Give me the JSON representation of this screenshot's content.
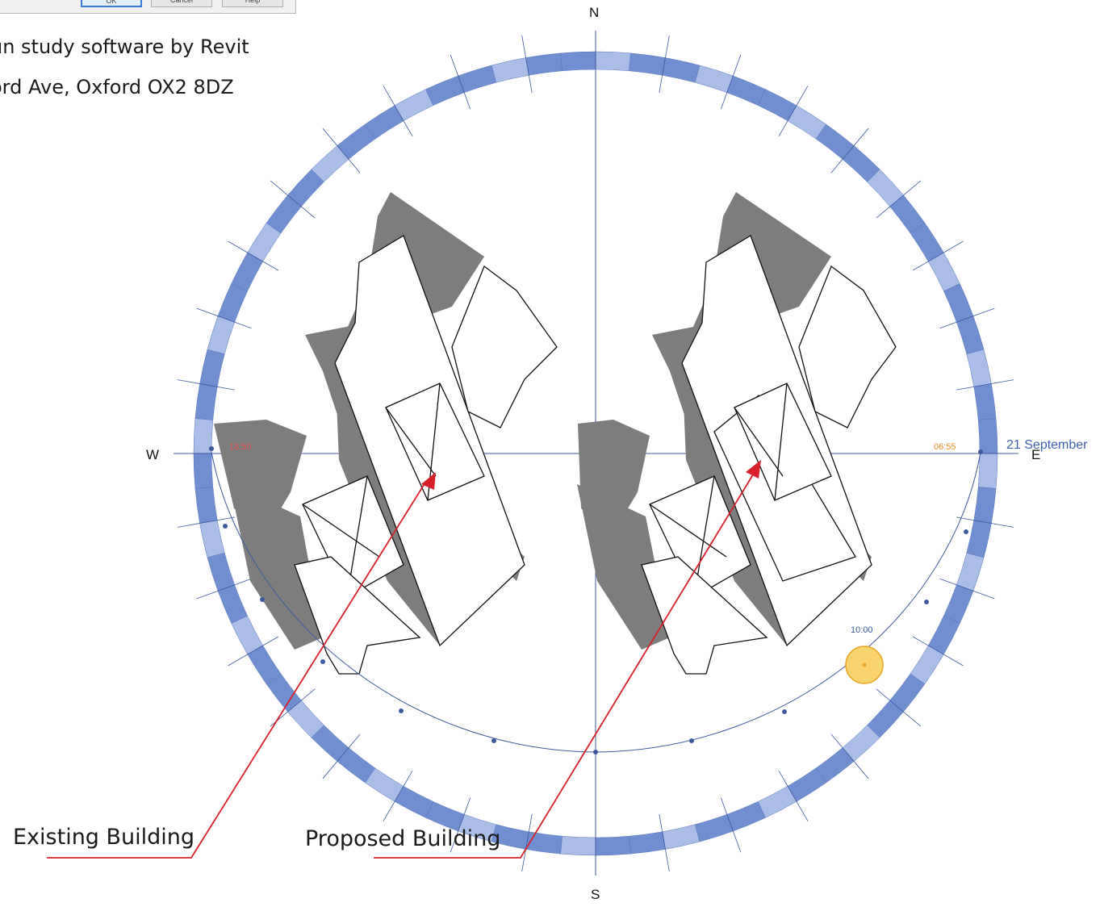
{
  "dialog": {
    "ok_label": "OK",
    "cancel_label": "Cancel",
    "help_label": "Help"
  },
  "caption": {
    "line1": "un study software by Revit",
    "line2": "ord Ave, Oxford OX2 8DZ"
  },
  "compass": {
    "north": "N",
    "south": "S",
    "east": "E",
    "west": "W"
  },
  "sun_path": {
    "date": "21 September",
    "sunrise_time": "06:55",
    "sunset_time": "18:50",
    "current_time": "10:00"
  },
  "callouts": {
    "existing": "Existing Building",
    "proposed": "Proposed Building"
  },
  "colors": {
    "ring_dark": "#6f8fd0",
    "ring_light": "#a9bde6",
    "axis": "#3d5a9e",
    "shadow": "#7d7d7d",
    "sun": "#f9d36b",
    "callout_line": "#d8202a",
    "sunrise_text": "#f08a24",
    "sunset_text": "#e05050"
  }
}
